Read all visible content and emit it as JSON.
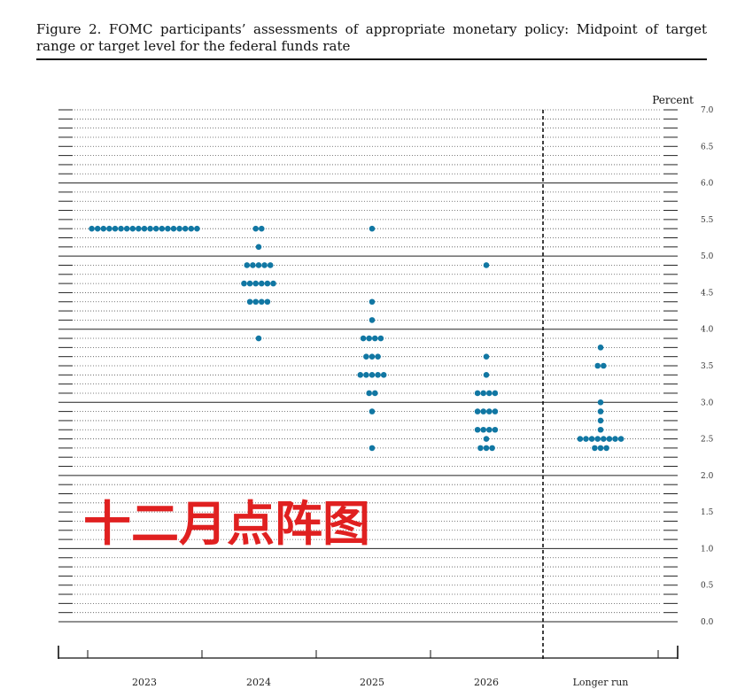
{
  "figure": {
    "caption": "Figure 2.  FOMC participants’ assessments of appropriate monetary policy: Midpoint of target range or target level for the federal funds rate",
    "overlay_text": "十二月点阵图"
  },
  "colors": {
    "dot": "#1177a3",
    "overlay": "#e02020",
    "line": "#111111"
  },
  "chart_data": {
    "type": "scatter",
    "title": "",
    "xlabel": "",
    "ylabel": "Percent",
    "ylim": [
      0,
      7
    ],
    "yticks": [
      "0.0",
      "0.5",
      "1.0",
      "1.5",
      "2.0",
      "2.5",
      "3.0",
      "3.5",
      "4.0",
      "4.5",
      "5.0",
      "5.5",
      "6.0",
      "6.5",
      "7.0"
    ],
    "categories": [
      "2023",
      "2024",
      "2025",
      "2026",
      "Longer run"
    ],
    "grid": true,
    "columns": [
      {
        "x": "2023",
        "dots": [
          {
            "y": 5.375,
            "count": 19
          }
        ]
      },
      {
        "x": "2024",
        "dots": [
          {
            "y": 5.375,
            "count": 2
          },
          {
            "y": 5.125,
            "count": 1
          },
          {
            "y": 4.875,
            "count": 5
          },
          {
            "y": 4.625,
            "count": 6
          },
          {
            "y": 4.375,
            "count": 4
          },
          {
            "y": 3.875,
            "count": 1
          }
        ]
      },
      {
        "x": "2025",
        "dots": [
          {
            "y": 5.375,
            "count": 1
          },
          {
            "y": 4.375,
            "count": 1
          },
          {
            "y": 4.125,
            "count": 1
          },
          {
            "y": 3.875,
            "count": 4
          },
          {
            "y": 3.625,
            "count": 3
          },
          {
            "y": 3.375,
            "count": 5
          },
          {
            "y": 3.125,
            "count": 2
          },
          {
            "y": 2.875,
            "count": 1
          },
          {
            "y": 2.375,
            "count": 1
          }
        ]
      },
      {
        "x": "2026",
        "dots": [
          {
            "y": 4.875,
            "count": 1
          },
          {
            "y": 3.625,
            "count": 1
          },
          {
            "y": 3.375,
            "count": 1
          },
          {
            "y": 3.125,
            "count": 4
          },
          {
            "y": 2.875,
            "count": 4
          },
          {
            "y": 2.625,
            "count": 4
          },
          {
            "y": 2.5,
            "count": 1
          },
          {
            "y": 2.375,
            "count": 3
          }
        ]
      },
      {
        "x": "Longer run",
        "dots": [
          {
            "y": 3.75,
            "count": 1
          },
          {
            "y": 3.5,
            "count": 2
          },
          {
            "y": 3.0,
            "count": 1
          },
          {
            "y": 2.875,
            "count": 1
          },
          {
            "y": 2.75,
            "count": 1
          },
          {
            "y": 2.625,
            "count": 1
          },
          {
            "y": 2.5,
            "count": 8
          },
          {
            "y": 2.375,
            "count": 3
          }
        ]
      }
    ]
  }
}
